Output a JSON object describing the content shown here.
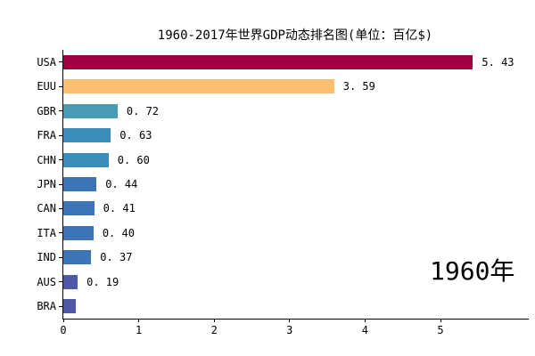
{
  "title": "1960-2017年世界GDP动态排名图(单位：百亿$)",
  "year_label": "1960年",
  "chart_data": {
    "type": "bar",
    "orientation": "horizontal",
    "title": "1960-2017年世界GDP动态排名图(单位：百亿$)",
    "xlabel": "",
    "ylabel": "",
    "categories": [
      "USA",
      "EUU",
      "GBR",
      "FRA",
      "CHN",
      "JPN",
      "CAN",
      "ITA",
      "IND",
      "AUS",
      "BRA"
    ],
    "values": [
      5.43,
      3.59,
      0.72,
      0.63,
      0.6,
      0.44,
      0.41,
      0.4,
      0.37,
      0.19,
      0.16
    ],
    "value_labels": [
      "5. 43",
      "3. 59",
      "0. 72",
      "0. 63",
      "0. 60",
      "0. 44",
      "0. 41",
      "0. 40",
      "0. 37",
      "0. 19",
      ""
    ],
    "bar_colors": [
      "#9e0142",
      "#fcbe70",
      "#4a9bb4",
      "#3a8eba",
      "#3a8eba",
      "#3d74b5",
      "#3d74b5",
      "#3d74b5",
      "#3d74b5",
      "#4f5aa7",
      "#4f5aa7"
    ],
    "x_ticks": [
      "0",
      "1",
      "2",
      "3",
      "4",
      "5"
    ],
    "xlim": [
      0,
      6.17
    ],
    "grid": false,
    "legend": false,
    "annotation": "1960年",
    "axis_color": "#000000",
    "background_color": "#ffffff",
    "text_color": "#000000"
  }
}
